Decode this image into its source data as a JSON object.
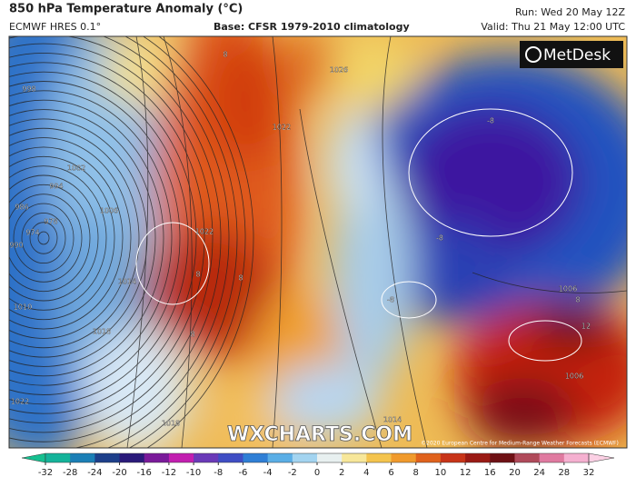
{
  "header": {
    "title": "850 hPa Temperature Anomaly (°C)",
    "model": "ECMWF HRES 0.1°",
    "base": "Base: CFSR 1979-2010 climatology",
    "run": "Run: Wed 20 May 12Z",
    "valid": "Valid: Thu 21 May 12:00 UTC"
  },
  "logo": "MetDesk",
  "watermark": "WXCHARTS.COM",
  "copyright": "©2020 European Centre for Medium-Range Weather Forecasts (ECMWF)",
  "map_labels": [
    "998",
    "1002",
    "994",
    "986",
    "978",
    "974",
    "990",
    "1006",
    "1010",
    "1014",
    "1018",
    "1022",
    "1022",
    "1022",
    "1018",
    "1014",
    "1026",
    "1006",
    "1006",
    "8",
    "8",
    "8",
    "8",
    "-8",
    "-8",
    "-8",
    "8",
    "12"
  ],
  "colorbar": {
    "ticks": [
      -32,
      -28,
      -24,
      -20,
      -16,
      -12,
      -10,
      -8,
      -6,
      -4,
      -2,
      0,
      2,
      4,
      6,
      8,
      10,
      12,
      16,
      20,
      24,
      28,
      32
    ]
  }
}
